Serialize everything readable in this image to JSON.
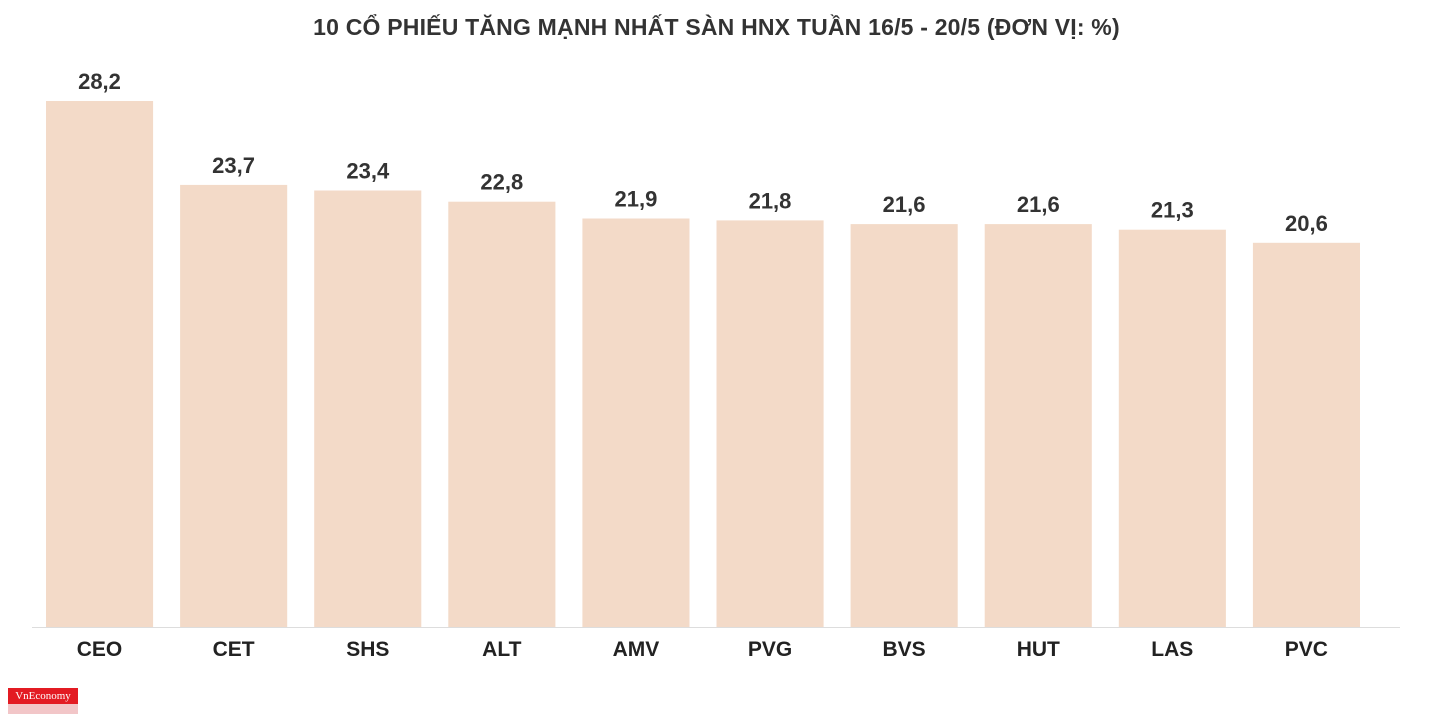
{
  "chart_data": {
    "type": "bar",
    "title": "10 CỔ PHIẾU TĂNG MẠNH NHẤT SÀN HNX TUẦN 16/5 - 20/5 (ĐƠN VỊ: %)",
    "categories": [
      "CEO",
      "CET",
      "SHS",
      "ALT",
      "AMV",
      "PVG",
      "BVS",
      "HUT",
      "LAS",
      "PVC"
    ],
    "values": [
      28.2,
      23.7,
      23.4,
      22.8,
      21.9,
      21.8,
      21.6,
      21.6,
      21.3,
      20.6
    ],
    "value_labels": [
      "28,2",
      "23,7",
      "23,4",
      "22,8",
      "21,9",
      "21,8",
      "21,6",
      "21,6",
      "21,3",
      "20,6"
    ],
    "xlabel": "",
    "ylabel": "",
    "ylim": [
      0,
      28.2
    ],
    "grid": false,
    "bar_color": "#f3dac8",
    "axis_color": "#dddddd"
  },
  "logo": {
    "text": "VnEconomy",
    "color": "#e31b23"
  }
}
